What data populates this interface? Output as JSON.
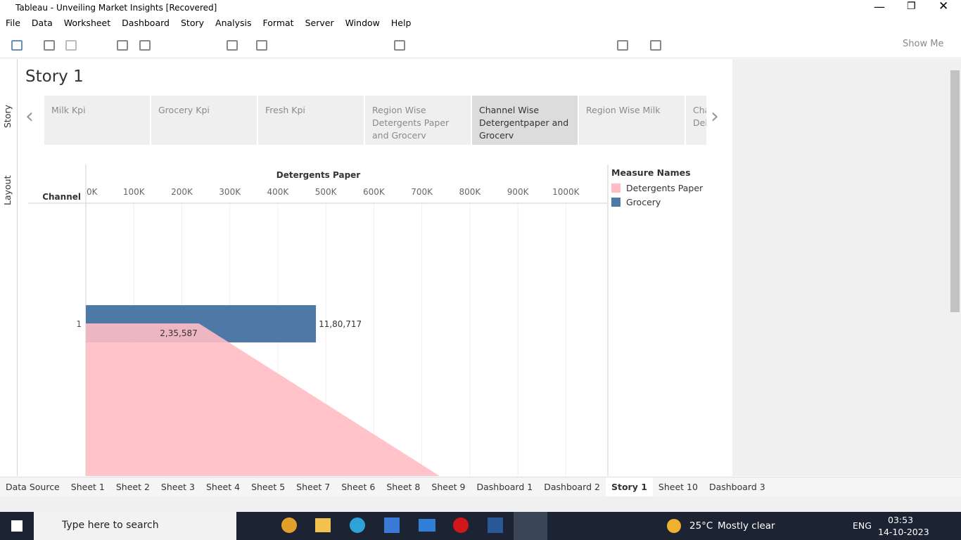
{
  "window": {
    "title": "Tableau - Unveiling Market Insights [Recovered]"
  },
  "menu": [
    "File",
    "Data",
    "Worksheet",
    "Dashboard",
    "Story",
    "Analysis",
    "Format",
    "Server",
    "Window",
    "Help"
  ],
  "toolbar": {
    "show_me": "Show Me"
  },
  "side_tabs": [
    "Story",
    "Layout"
  ],
  "story": {
    "title": "Story 1",
    "points": [
      "Milk Kpi",
      "Grocery Kpi",
      "Fresh Kpi",
      "Region Wise Detergents Paper and Grocerv",
      "Channel Wise Detergentpaper and Grocerv",
      "Region Wise Milk",
      "Cha Del"
    ],
    "active_point": 4
  },
  "chart_data": {
    "type": "bar",
    "x_axis_title": "Detergents Paper",
    "row_header": "Channel",
    "categories": [
      "1"
    ],
    "series": [
      {
        "name": "Detergents Paper",
        "color": "#ffbcc3",
        "values": [
          235587
        ],
        "value_labels": [
          "2,35,587"
        ]
      },
      {
        "name": "Grocery",
        "color": "#4e79a7",
        "values": [
          1180717
        ],
        "value_labels": [
          "11,80,717"
        ],
        "axis": "x2"
      }
    ],
    "xlim": [
      0,
      1086000
    ],
    "x2lim": [
      0,
      2675000
    ],
    "xticks": [
      {
        "value": 0,
        "label": "0K"
      },
      {
        "value": 100000,
        "label": "100K"
      },
      {
        "value": 200000,
        "label": "200K"
      },
      {
        "value": 300000,
        "label": "300K"
      },
      {
        "value": 400000,
        "label": "400K"
      },
      {
        "value": 500000,
        "label": "500K"
      },
      {
        "value": 600000,
        "label": "600K"
      },
      {
        "value": 700000,
        "label": "700K"
      },
      {
        "value": 800000,
        "label": "800K"
      },
      {
        "value": 900000,
        "label": "900K"
      },
      {
        "value": 1000000,
        "label": "1000K"
      }
    ],
    "legend_title": "Measure Names",
    "grid": true
  },
  "sheet_tabs": [
    "Data Source",
    "Sheet 1",
    "Sheet 2",
    "Sheet 3",
    "Sheet 4",
    "Sheet 5",
    "Sheet 7",
    "Sheet 6",
    "Sheet 8",
    "Sheet 9",
    "Dashboard 1",
    "Dashboard 2",
    "Story 1",
    "Sheet 10",
    "Dashboard 3"
  ],
  "active_tab": 12,
  "taskbar": {
    "search": "Type here to search",
    "temperature": "25°C",
    "weather": "Mostly clear",
    "language": "ENG",
    "time": "03:53",
    "date": "14-10-2023"
  }
}
